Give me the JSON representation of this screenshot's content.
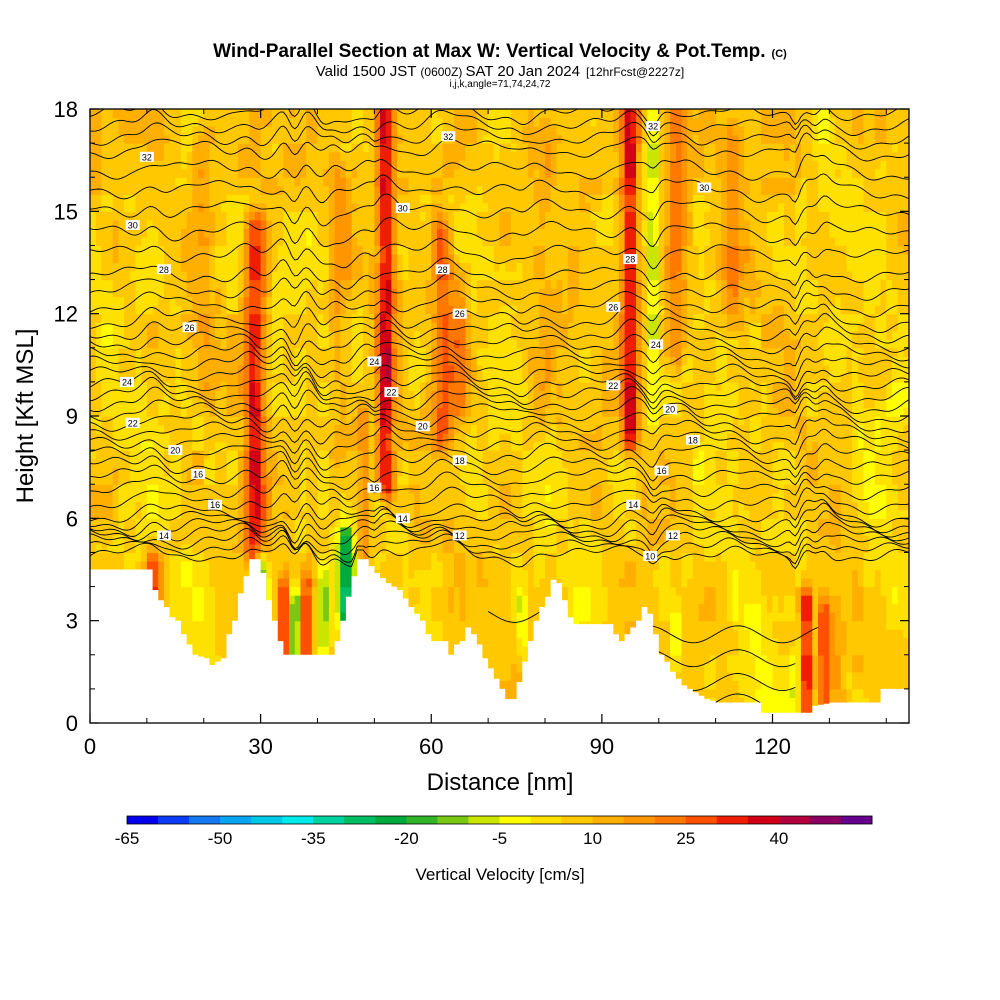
{
  "title": {
    "main": "Wind-Parallel Section at Max W: Vertical Velocity & Pot.Temp.",
    "copyright": "(C)",
    "valid_prefix": "Valid 1500 JST",
    "valid_utc": "(0600Z)",
    "valid_date": "SAT 20 Jan 2024",
    "forecast": "[12hrFcst@2227z]",
    "grid_info": "i,j,k,angle=71,74,24,72"
  },
  "chart_data": {
    "type": "heatmap",
    "xlabel": "Distance [nm]",
    "ylabel": "Height [Kft MSL]",
    "xlim": [
      0,
      144
    ],
    "ylim": [
      0,
      18
    ],
    "xticks": [
      "0",
      "30",
      "60",
      "90",
      "120"
    ],
    "yticks": [
      "0",
      "3",
      "6",
      "9",
      "12",
      "15",
      "18"
    ],
    "terrain_kft": [
      [
        0,
        4.5
      ],
      [
        10,
        4.5
      ],
      [
        11,
        3.9
      ],
      [
        12,
        3.6
      ],
      [
        13,
        3.4
      ],
      [
        14,
        3.1
      ],
      [
        15,
        3.0
      ],
      [
        16,
        2.6
      ],
      [
        17,
        2.3
      ],
      [
        18,
        2.0
      ],
      [
        20,
        1.9
      ],
      [
        21,
        1.7
      ],
      [
        23,
        1.9
      ],
      [
        24,
        2.6
      ],
      [
        25,
        3.0
      ],
      [
        26,
        3.8
      ],
      [
        27,
        4.3
      ],
      [
        28,
        4.8
      ],
      [
        29,
        4.8
      ],
      [
        30,
        4.4
      ],
      [
        31,
        3.6
      ],
      [
        32,
        3.0
      ],
      [
        33,
        2.4
      ],
      [
        34,
        2.0
      ],
      [
        36,
        2.0
      ],
      [
        38,
        2.0
      ],
      [
        40,
        2.0
      ],
      [
        42,
        2.0
      ],
      [
        43,
        2.4
      ],
      [
        44,
        3.0
      ],
      [
        45,
        3.7
      ],
      [
        46,
        4.3
      ],
      [
        47,
        4.8
      ],
      [
        48,
        4.8
      ],
      [
        49,
        4.6
      ],
      [
        50,
        4.4
      ],
      [
        52,
        4.1
      ],
      [
        54,
        3.9
      ],
      [
        56,
        3.4
      ],
      [
        57,
        3.2
      ],
      [
        58,
        3.0
      ],
      [
        59,
        2.6
      ],
      [
        60,
        2.4
      ],
      [
        62,
        2.4
      ],
      [
        63,
        2.0
      ],
      [
        64,
        2.3
      ],
      [
        65,
        2.4
      ],
      [
        66,
        2.8
      ],
      [
        67,
        2.6
      ],
      [
        68,
        2.3
      ],
      [
        69,
        1.9
      ],
      [
        70,
        1.6
      ],
      [
        71,
        1.3
      ],
      [
        72,
        1.0
      ],
      [
        73,
        0.7
      ],
      [
        74,
        0.7
      ],
      [
        75,
        1.2
      ],
      [
        76,
        1.8
      ],
      [
        77,
        2.4
      ],
      [
        78,
        3.0
      ],
      [
        79,
        3.4
      ],
      [
        80,
        3.7
      ],
      [
        81,
        4.2
      ],
      [
        82,
        4.1
      ],
      [
        83,
        3.6
      ],
      [
        84,
        3.1
      ],
      [
        85,
        2.9
      ],
      [
        86,
        2.9
      ],
      [
        88,
        2.9
      ],
      [
        90,
        2.9
      ],
      [
        91,
        2.9
      ],
      [
        92,
        2.6
      ],
      [
        93,
        2.4
      ],
      [
        94,
        2.6
      ],
      [
        95,
        2.8
      ],
      [
        96,
        3.0
      ],
      [
        97,
        3.4
      ],
      [
        98,
        3.2
      ],
      [
        99,
        2.6
      ],
      [
        100,
        2.0
      ],
      [
        101,
        1.8
      ],
      [
        102,
        1.5
      ],
      [
        103,
        1.3
      ],
      [
        104,
        1.1
      ],
      [
        106,
        0.9
      ],
      [
        108,
        0.7
      ],
      [
        110,
        0.6
      ],
      [
        112,
        0.6
      ],
      [
        114,
        0.6
      ],
      [
        117,
        0.6
      ],
      [
        118,
        0.3
      ],
      [
        120,
        0.3
      ],
      [
        122,
        0.3
      ],
      [
        126,
        0.3
      ],
      [
        127,
        0.5
      ],
      [
        130,
        0.6
      ],
      [
        136,
        0.6
      ],
      [
        138,
        0.6
      ],
      [
        139,
        1.0
      ],
      [
        144,
        1.0
      ]
    ],
    "updrafts": [
      {
        "x": 29,
        "w": 1.8,
        "y0": 5.0,
        "y1": 14.5,
        "amp": 28
      },
      {
        "x": 52,
        "w": 1.5,
        "y0": 7.0,
        "y1": 18.0,
        "amp": 30
      },
      {
        "x": 48,
        "w": 1.2,
        "y0": 5.0,
        "y1": 9.0,
        "amp": 12
      },
      {
        "x": 62,
        "w": 1.8,
        "y0": 8.5,
        "y1": 14.5,
        "amp": 20
      },
      {
        "x": 65,
        "w": 1.6,
        "y0": 9.5,
        "y1": 13.0,
        "amp": 14
      },
      {
        "x": 95,
        "w": 1.5,
        "y0": 8.5,
        "y1": 18.0,
        "amp": 30
      },
      {
        "x": 103,
        "w": 2.0,
        "y0": 11.0,
        "y1": 18.0,
        "amp": 16
      },
      {
        "x": 113,
        "w": 2.2,
        "y0": 12.0,
        "y1": 17.0,
        "amp": 10
      },
      {
        "x": 11,
        "w": 1.4,
        "y0": 3.2,
        "y1": 4.6,
        "amp": 24
      },
      {
        "x": 34,
        "w": 0.9,
        "y0": 2.0,
        "y1": 3.8,
        "amp": 28
      },
      {
        "x": 38,
        "w": 0.9,
        "y0": 2.0,
        "y1": 3.8,
        "amp": 24
      },
      {
        "x": 126,
        "w": 0.8,
        "y0": 0.4,
        "y1": 3.5,
        "amp": 34
      },
      {
        "x": 129,
        "w": 0.9,
        "y0": 0.4,
        "y1": 3.2,
        "amp": 26
      },
      {
        "x": 131,
        "w": 1.5,
        "y0": 0.6,
        "y1": 3.0,
        "amp": 8
      },
      {
        "x": 20,
        "w": 2.0,
        "y0": 10.0,
        "y1": 17.0,
        "amp": 8
      },
      {
        "x": 44,
        "w": 2.0,
        "y0": 8.0,
        "y1": 16.0,
        "amp": 8
      },
      {
        "x": 80,
        "w": 2.0,
        "y0": 9.0,
        "y1": 17.0,
        "amp": 6
      }
    ],
    "downdrafts": [
      {
        "x": 99,
        "w": 0.7,
        "y0": 9.0,
        "y1": 18.0,
        "amp": -16
      },
      {
        "x": 30,
        "w": 1.2,
        "y0": 3.0,
        "y1": 4.6,
        "amp": -26
      },
      {
        "x": 36,
        "w": 0.8,
        "y0": 2.0,
        "y1": 3.5,
        "amp": -30
      },
      {
        "x": 41,
        "w": 1.0,
        "y0": 2.5,
        "y1": 4.2,
        "amp": -20
      },
      {
        "x": 45,
        "w": 1.4,
        "y0": 3.3,
        "y1": 5.3,
        "amp": -34
      },
      {
        "x": 50,
        "w": 0.5,
        "y0": 8.8,
        "y1": 9.6,
        "amp": -12
      },
      {
        "x": 76,
        "w": 1.0,
        "y0": 2.5,
        "y1": 3.5,
        "amp": -10
      },
      {
        "x": 124,
        "w": 0.5,
        "y0": 1.0,
        "y1": 1.8,
        "amp": -16
      },
      {
        "x": 103,
        "w": 1.0,
        "y0": 2.0,
        "y1": 3.0,
        "amp": -10
      },
      {
        "x": 118,
        "w": 3.0,
        "y0": 0.8,
        "y1": 3.0,
        "amp": -6
      },
      {
        "x": 138,
        "w": 3.0,
        "y0": 3.0,
        "y1": 9.0,
        "amp": -5
      }
    ],
    "theta_contours": [
      {
        "level": 10,
        "y": 4.9
      },
      {
        "level": 12,
        "y": 5.5
      },
      {
        "level": 14,
        "y": 6.1
      },
      {
        "level": 16,
        "y": 7.2
      },
      {
        "level": 18,
        "y": 8.2
      },
      {
        "level": 20,
        "y": 9.1
      },
      {
        "level": 22,
        "y": 9.9
      },
      {
        "level": 24,
        "y": 10.8
      },
      {
        "level": 26,
        "y": 11.8
      },
      {
        "level": 28,
        "y": 13.1
      },
      {
        "level": 30,
        "y": 15.0
      },
      {
        "level": 32,
        "y": 16.8
      }
    ],
    "contour_labels": [
      {
        "text": "14",
        "x": 13,
        "y": 5.5
      },
      {
        "text": "16",
        "x": 22,
        "y": 6.4
      },
      {
        "text": "16",
        "x": 19,
        "y": 7.3
      },
      {
        "text": "20",
        "x": 15,
        "y": 8.0
      },
      {
        "text": "22",
        "x": 7.5,
        "y": 8.8
      },
      {
        "text": "24",
        "x": 6.5,
        "y": 10.0
      },
      {
        "text": "26",
        "x": 17.5,
        "y": 11.6
      },
      {
        "text": "28",
        "x": 13,
        "y": 13.3
      },
      {
        "text": "30",
        "x": 7.5,
        "y": 14.6
      },
      {
        "text": "32",
        "x": 10,
        "y": 16.6
      },
      {
        "text": "24",
        "x": 50,
        "y": 10.6
      },
      {
        "text": "22",
        "x": 53,
        "y": 9.7
      },
      {
        "text": "20",
        "x": 58.5,
        "y": 8.7
      },
      {
        "text": "18",
        "x": 65,
        "y": 7.7
      },
      {
        "text": "16",
        "x": 50,
        "y": 6.9
      },
      {
        "text": "14",
        "x": 55,
        "y": 6.0
      },
      {
        "text": "12",
        "x": 65,
        "y": 5.5
      },
      {
        "text": "30",
        "x": 55,
        "y": 15.1
      },
      {
        "text": "32",
        "x": 63,
        "y": 17.2
      },
      {
        "text": "28",
        "x": 62,
        "y": 13.3
      },
      {
        "text": "26",
        "x": 65,
        "y": 12.0
      },
      {
        "text": "32",
        "x": 99,
        "y": 17.5
      },
      {
        "text": "30",
        "x": 108,
        "y": 15.7
      },
      {
        "text": "28",
        "x": 95,
        "y": 13.6
      },
      {
        "text": "26",
        "x": 92,
        "y": 12.2
      },
      {
        "text": "24",
        "x": 99.5,
        "y": 11.1
      },
      {
        "text": "22",
        "x": 92,
        "y": 9.9
      },
      {
        "text": "20",
        "x": 102,
        "y": 9.2
      },
      {
        "text": "18",
        "x": 106,
        "y": 8.3
      },
      {
        "text": "16",
        "x": 100.5,
        "y": 7.4
      },
      {
        "text": "14",
        "x": 95.5,
        "y": 6.4
      },
      {
        "text": "12",
        "x": 102.5,
        "y": 5.5
      },
      {
        "text": "10",
        "x": 98.5,
        "y": 4.9
      }
    ]
  },
  "colorbar": {
    "title": "Vertical Velocity [cm/s]",
    "tick_labels": [
      "-65",
      "-50",
      "-35",
      "-20",
      "-5",
      "10",
      "25",
      "40"
    ],
    "levels": [
      -65,
      -60,
      -55,
      -50,
      -45,
      -40,
      -35,
      -30,
      -25,
      -20,
      -15,
      -10,
      -5,
      0,
      5,
      10,
      15,
      20,
      25,
      30,
      35,
      40,
      45,
      50
    ],
    "colors": [
      "#0000ee",
      "#0a3cf5",
      "#1478f0",
      "#0aa5f0",
      "#00c8e6",
      "#00ebeb",
      "#00d2a0",
      "#00be64",
      "#00aa3c",
      "#32b428",
      "#78c814",
      "#c8e600",
      "#ffff00",
      "#ffe100",
      "#ffc800",
      "#ffaf00",
      "#ff9600",
      "#ff7800",
      "#ff5000",
      "#f01e00",
      "#d20014",
      "#b4003c",
      "#8c0064",
      "#64008c"
    ]
  }
}
